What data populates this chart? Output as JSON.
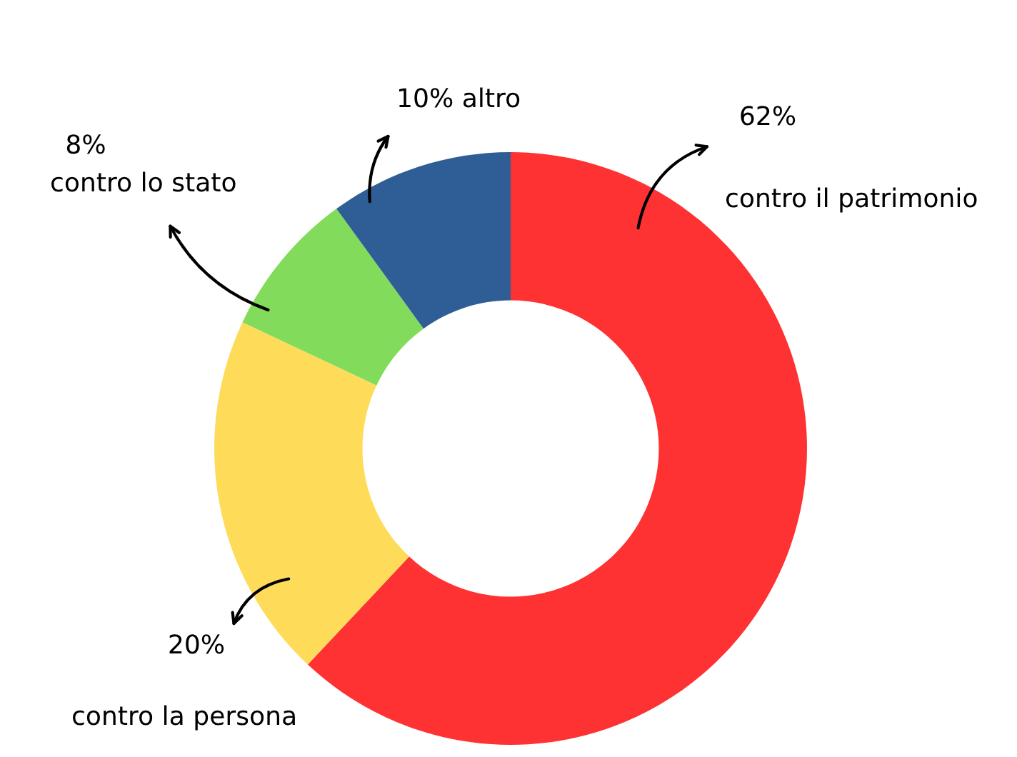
{
  "chart_data": {
    "type": "donut",
    "categories": [
      "contro il patrimonio",
      "contro la persona",
      "contro lo stato",
      "altro"
    ],
    "values": [
      62,
      20,
      8,
      10
    ],
    "value_labels": [
      "62%",
      "20%",
      "8%",
      "10%"
    ],
    "colors": [
      "#fe3233",
      "#fedc5a",
      "#82db5a",
      "#2f5e96"
    ],
    "legend": false
  }
}
